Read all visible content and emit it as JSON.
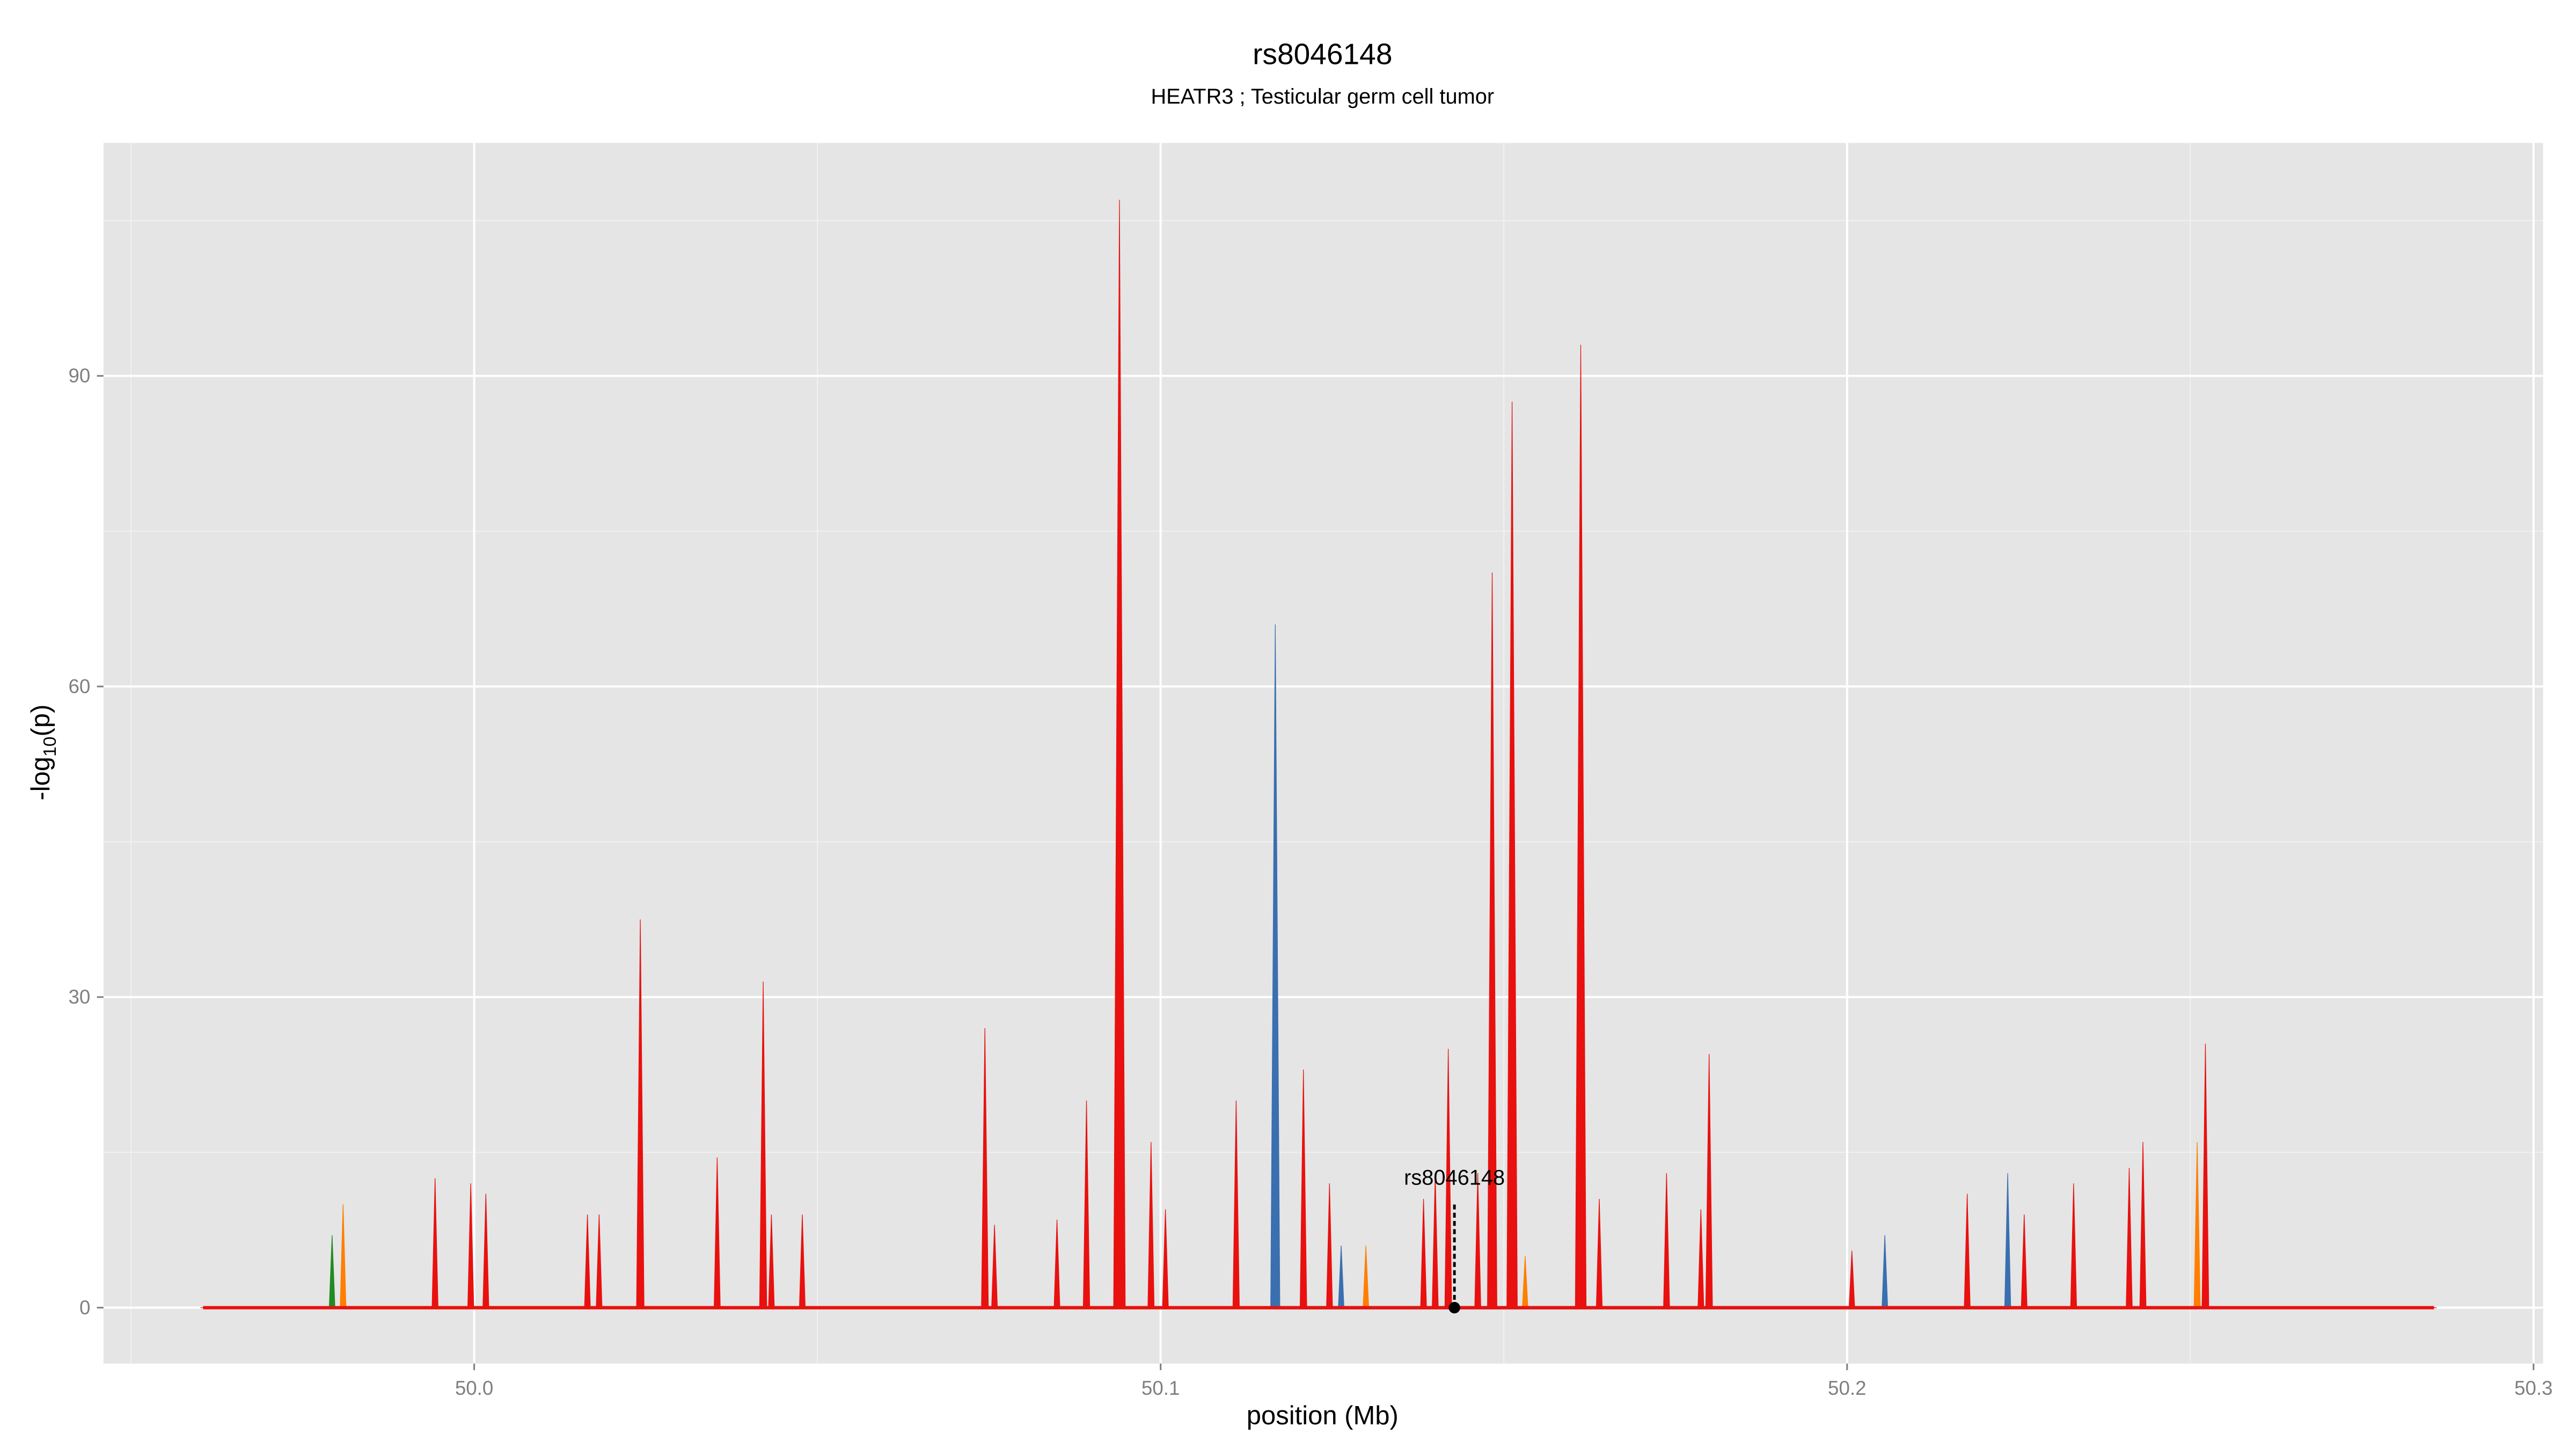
{
  "chart_data": {
    "type": "area",
    "title": "rs8046148",
    "subtitle": "HEATR3 ; Testicular germ cell tumor",
    "x_label": "position (Mb)",
    "y_label": {
      "prefix": "-log",
      "sub": "10",
      "suffix": "(p)"
    },
    "xlim": [
      49.946,
      50.3014
    ],
    "ylim": [
      -5.4,
      112.5
    ],
    "xticks": [
      {
        "value": 50.0,
        "label": "50.0"
      },
      {
        "value": 50.1,
        "label": "50.1"
      },
      {
        "value": 50.2,
        "label": "50.2"
      },
      {
        "value": 50.3,
        "label": "50.3"
      }
    ],
    "yticks": [
      0,
      30,
      60,
      90
    ],
    "grid": true,
    "background": "#e5e5e5",
    "series": [
      {
        "color": "#228b22",
        "x": [
          49.9793
        ],
        "values": [
          7
        ]
      },
      {
        "color": "#ff7f00",
        "x": [
          49.9809,
          50.1299,
          50.1531,
          50.251
        ],
        "values": [
          10,
          6,
          5,
          16
        ]
      },
      {
        "color": "#3a6fb0",
        "x": [
          50.1167,
          50.1263,
          50.2055,
          50.2234
        ],
        "values": [
          66,
          6,
          7,
          13
        ]
      },
      {
        "color": "#e8110f",
        "x": [
          49.9605,
          49.9943,
          49.9995,
          50.0017,
          50.0165,
          50.0182,
          50.0242,
          50.0354,
          50.0421,
          50.0433,
          50.0478,
          50.0744,
          50.0758,
          50.0849,
          50.0892,
          50.094,
          50.0986,
          50.1007,
          50.111,
          50.1208,
          50.1246,
          50.1383,
          50.14,
          50.1419,
          50.1462,
          50.1483,
          50.1512,
          50.1612,
          50.1639,
          50.1737,
          50.1787,
          50.1799,
          50.2007,
          50.2175,
          50.2258,
          50.233,
          50.2411,
          50.2431,
          50.2522,
          50.2855
        ],
        "values": [
          0,
          12.5,
          12,
          11,
          9,
          9,
          37.5,
          14.5,
          31.5,
          9,
          9,
          27,
          8,
          8.5,
          20,
          107,
          16,
          9.5,
          20,
          23,
          12,
          10.5,
          13,
          25,
          13,
          71,
          87.5,
          93,
          10.5,
          13,
          9.5,
          24.5,
          5.5,
          11,
          9,
          12,
          13.5,
          16,
          25.5,
          0
        ]
      }
    ],
    "annotation": {
      "label": "rs8046148",
      "x": 50.1428,
      "y": 0,
      "label_y": 12.5
    }
  }
}
